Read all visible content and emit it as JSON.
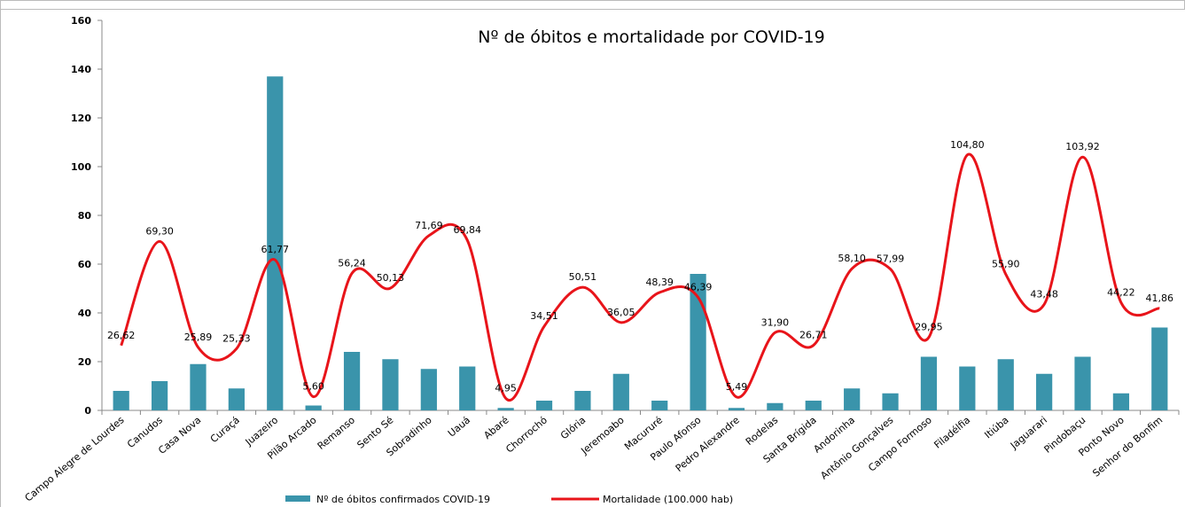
{
  "chart_data": {
    "type": "bar_line",
    "title": "Nº de óbitos e mortalidade por COVID-19",
    "categories": [
      "Campo Alegre de Lourdes",
      "Canudos",
      "Casa Nova",
      "Curaçá",
      "Juazeiro",
      "Pilão Arcado",
      "Remanso",
      "Sento Sé",
      "Sobradinho",
      "Uauá",
      "Abaré",
      "Chorrochó",
      "Glória",
      "Jeremoabo",
      "Macururé",
      "Paulo Afonso",
      "Pedro Alexandre",
      "Rodelas",
      "Santa Brígida",
      "Andorinha",
      "Antônio Gonçalves",
      "Campo Formoso",
      "Filadélfia",
      "Itiúba",
      "Jaguarari",
      "Pindobaçu",
      "Ponto Novo",
      "Senhor do Bonfim"
    ],
    "series": [
      {
        "name": "Nº de óbitos confirmados COVID-19",
        "type": "bar",
        "color": "#3a94ab",
        "values": [
          8,
          12,
          19,
          9,
          137,
          2,
          24,
          21,
          17,
          18,
          1,
          4,
          8,
          15,
          4,
          56,
          1,
          3,
          4,
          9,
          7,
          22,
          18,
          21,
          15,
          22,
          7,
          34
        ]
      },
      {
        "name": "Mortalidade (100.000 hab)",
        "type": "line",
        "color": "#e8141a",
        "values": [
          26.62,
          69.3,
          25.89,
          25.33,
          61.77,
          5.6,
          56.24,
          50.13,
          71.69,
          69.84,
          4.95,
          34.51,
          50.51,
          36.05,
          48.39,
          46.39,
          5.49,
          31.9,
          26.71,
          58.1,
          57.99,
          29.95,
          104.8,
          55.9,
          43.48,
          103.92,
          44.22,
          41.86
        ],
        "value_labels": [
          "26,62",
          "69,30",
          "25,89",
          "25,33",
          "61,77",
          "5,60",
          "56,24",
          "50,13",
          "71,69",
          "69,84",
          "4,95",
          "34,51",
          "50,51",
          "36,05",
          "48,39",
          "46,39",
          "5,49",
          "31,90",
          "26,71",
          "58,10",
          "57,99",
          "29,95",
          "104,80",
          "55,90",
          "43,48",
          "103,92",
          "44,22",
          "41,86"
        ]
      }
    ],
    "ylim": [
      0,
      160
    ],
    "yticks": [
      0,
      20,
      40,
      60,
      80,
      100,
      120,
      140,
      160
    ],
    "grid": false,
    "legend": "bottom"
  }
}
